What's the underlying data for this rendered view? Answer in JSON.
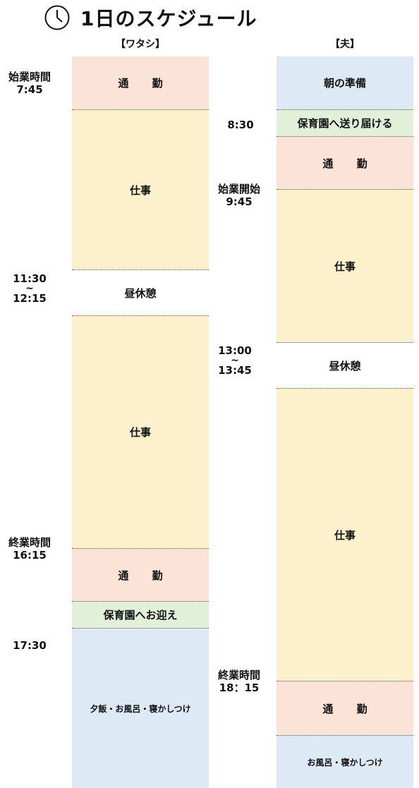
{
  "title": "1日のスケジュール",
  "icon": "clock-icon",
  "colors": {
    "commute": "#fbe3d8",
    "work": "#fdf0cd",
    "daycare": "#e2efd9",
    "home": "#dde9f5",
    "break": "#ffffff"
  },
  "columns": [
    {
      "header": "【ワタシ】",
      "blocks": [
        {
          "label": "通 勤",
          "type": "commute"
        },
        {
          "label": "仕事",
          "type": "work"
        },
        {
          "label": "昼休憩",
          "type": "break"
        },
        {
          "label": "仕事",
          "type": "work"
        },
        {
          "label": "通 勤",
          "type": "commute"
        },
        {
          "label": "保育園へお迎え",
          "type": "daycare"
        },
        {
          "label": "夕飯・お風呂・寝かしつけ",
          "type": "home"
        }
      ],
      "times": [
        {
          "line1": "始業時間",
          "line2": "7:45"
        },
        {
          "line1": "11:30",
          "line2": "12:15"
        },
        {
          "line1": "終業時間",
          "line2": "16:15"
        },
        {
          "line1": "17:30"
        }
      ]
    },
    {
      "header": "【夫】",
      "blocks": [
        {
          "label": "朝の準備",
          "type": "home"
        },
        {
          "label": "保育園へ送り届ける",
          "type": "daycare"
        },
        {
          "label": "通 勤",
          "type": "commute"
        },
        {
          "label": "仕事",
          "type": "work"
        },
        {
          "label": "昼休憩",
          "type": "break"
        },
        {
          "label": "仕事",
          "type": "work"
        },
        {
          "label": "通 勤",
          "type": "commute"
        },
        {
          "label": "お風呂・寝かしつけ",
          "type": "home"
        }
      ],
      "times": [
        {
          "line1": "8:30"
        },
        {
          "line1": "始業開始",
          "line2": "9:45"
        },
        {
          "line1": "13:00",
          "line2": "13:45"
        },
        {
          "line1": "終業時間",
          "line2": "18：15"
        }
      ]
    }
  ]
}
